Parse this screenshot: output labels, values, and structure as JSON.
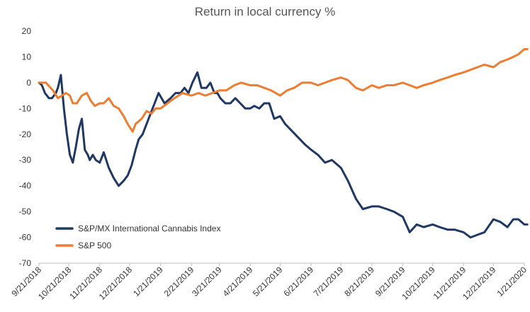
{
  "chart_data": {
    "type": "line",
    "title": "Return in local currency %",
    "xlabel": "",
    "ylabel": "",
    "ylim": [
      -70,
      20
    ],
    "y_ticks": [
      20,
      10,
      0,
      -10,
      -20,
      -30,
      -40,
      -50,
      -60,
      -70
    ],
    "x_tick_labels": [
      "9/21/2018",
      "10/21/2018",
      "11/21/2018",
      "12/21/2018",
      "1/21/2019",
      "2/21/2019",
      "3/21/2019",
      "4/21/2019",
      "5/21/2019",
      "6/21/2019",
      "7/21/2019",
      "8/21/2019",
      "9/21/2019",
      "10/21/2019",
      "11/21/2019",
      "12/21/2019",
      "1/21/2020"
    ],
    "x_axis": "monthly dates, 9/21/2018 to 1/21/2020",
    "grid": false,
    "legend_position": "lower-left",
    "series": [
      {
        "name": "S&P/MX International Cannabis Index",
        "color": "#1f3864",
        "x": [
          "9/21/2018",
          "9/24/2018",
          "9/27/2018",
          "10/1/2018",
          "10/4/2018",
          "10/8/2018",
          "10/10/2018",
          "10/13/2018",
          "10/16/2018",
          "10/19/2018",
          "10/22/2018",
          "10/25/2018",
          "10/28/2018",
          "10/31/2018",
          "11/3/2018",
          "11/6/2018",
          "11/9/2018",
          "11/11/2018",
          "11/14/2018",
          "11/17/2018",
          "11/21/2018",
          "11/25/2018",
          "11/30/2018",
          "12/5/2018",
          "12/10/2018",
          "12/15/2018",
          "12/19/2018",
          "12/23/2018",
          "12/27/2018",
          "12/30/2018",
          "1/3/2019",
          "1/7/2019",
          "1/11/2019",
          "1/15/2019",
          "1/19/2019",
          "1/25/2019",
          "1/31/2019",
          "2/5/2019",
          "2/10/2019",
          "2/14/2019",
          "2/18/2019",
          "2/22/2019",
          "2/27/2019",
          "3/3/2019",
          "3/8/2019",
          "3/12/2019",
          "3/16/2019",
          "3/19/2019",
          "3/22/2019",
          "3/27/2019",
          "4/1/2019",
          "4/6/2019",
          "4/11/2019",
          "4/16/2019",
          "4/21/2019",
          "4/25/2019",
          "4/30/2019",
          "5/5/2019",
          "5/10/2019",
          "5/15/2019",
          "5/21/2019",
          "5/26/2019",
          "5/31/2019",
          "6/5/2019",
          "6/10/2019",
          "6/15/2019",
          "6/21/2019",
          "6/28/2019",
          "7/5/2019",
          "7/12/2019",
          "7/21/2019",
          "7/28/2019",
          "8/5/2019",
          "8/12/2019",
          "8/21/2019",
          "8/28/2019",
          "9/5/2019",
          "9/12/2019",
          "9/21/2019",
          "9/28/2019",
          "10/5/2019",
          "10/12/2019",
          "10/21/2019",
          "10/28/2019",
          "11/5/2019",
          "11/12/2019",
          "11/21/2019",
          "11/28/2019",
          "12/5/2019",
          "12/12/2019",
          "12/21/2019",
          "12/28/2019",
          "1/4/2020",
          "1/10/2020",
          "1/15/2020",
          "1/21/2020",
          "1/24/2020"
        ],
        "y": [
          0,
          -1,
          -4,
          -6,
          -6,
          -4,
          -2,
          3,
          -10,
          -20,
          -28,
          -31,
          -25,
          -18,
          -14,
          -26,
          -28,
          -30,
          -28,
          -30,
          -31,
          -27,
          -33,
          -37,
          -40,
          -38,
          -36,
          -32,
          -26,
          -22,
          -20,
          -16,
          -12,
          -8,
          -4,
          -8,
          -6,
          -4,
          -4,
          -2,
          -4,
          0,
          4,
          -2,
          -2,
          0,
          -4,
          -4,
          -6,
          -8,
          -8,
          -6,
          -8,
          -10,
          -10,
          -9,
          -10,
          -8,
          -8,
          -14,
          -13,
          -16,
          -18,
          -20,
          -22,
          -24,
          -26,
          -28,
          -31,
          -30,
          -33,
          -38,
          -45,
          -49,
          -48,
          -48,
          -49,
          -50,
          -52,
          -58,
          -55,
          -56,
          -55,
          -56,
          -57,
          -57,
          -58,
          -60,
          -59,
          -58,
          -53,
          -54,
          -56,
          -53,
          -53,
          -55,
          -55
        ]
      },
      {
        "name": "S&P 500",
        "color": "#ed7d31",
        "x": [
          "9/21/2018",
          "9/28/2018",
          "10/5/2018",
          "10/10/2018",
          "10/14/2018",
          "10/18/2018",
          "10/22/2018",
          "10/25/2018",
          "10/29/2018",
          "11/3/2018",
          "11/8/2018",
          "11/12/2018",
          "11/16/2018",
          "11/21/2018",
          "11/25/2018",
          "11/30/2018",
          "12/5/2018",
          "12/10/2018",
          "12/15/2018",
          "12/19/2018",
          "12/24/2018",
          "12/27/2018",
          "1/2/2019",
          "1/7/2019",
          "1/12/2019",
          "1/16/2019",
          "1/21/2019",
          "1/28/2019",
          "2/4/2019",
          "2/12/2019",
          "2/21/2019",
          "2/28/2019",
          "3/7/2019",
          "3/14/2019",
          "3/21/2019",
          "3/28/2019",
          "4/5/2019",
          "4/12/2019",
          "4/21/2019",
          "4/28/2019",
          "5/5/2019",
          "5/12/2019",
          "5/21/2019",
          "5/28/2019",
          "6/4/2019",
          "6/12/2019",
          "6/21/2019",
          "6/28/2019",
          "7/5/2019",
          "7/12/2019",
          "7/21/2019",
          "7/28/2019",
          "8/5/2019",
          "8/12/2019",
          "8/21/2019",
          "8/28/2019",
          "9/5/2019",
          "9/12/2019",
          "9/21/2019",
          "9/28/2019",
          "10/5/2019",
          "10/12/2019",
          "10/21/2019",
          "10/28/2019",
          "11/5/2019",
          "11/12/2019",
          "11/21/2019",
          "11/28/2019",
          "12/5/2019",
          "12/12/2019",
          "12/21/2019",
          "12/28/2019",
          "1/4/2020",
          "1/10/2020",
          "1/15/2020",
          "1/21/2020",
          "1/24/2020"
        ],
        "y": [
          0,
          0,
          -3,
          -6,
          -5,
          -4,
          -5,
          -8,
          -8,
          -5,
          -4,
          -7,
          -9,
          -8,
          -8,
          -6,
          -9,
          -10,
          -13,
          -16,
          -19,
          -16,
          -14,
          -11,
          -12,
          -10,
          -10,
          -8,
          -6,
          -4,
          -5,
          -4,
          -5,
          -4,
          -3,
          -3,
          -1,
          0,
          -1,
          -1,
          -2,
          -3,
          -5,
          -3,
          -2,
          0,
          0,
          -1,
          0,
          1,
          2,
          1,
          -2,
          -3,
          -1,
          -2,
          -1,
          -1,
          0,
          -1,
          -2,
          -1,
          0,
          1,
          2,
          3,
          4,
          5,
          6,
          7,
          6,
          8,
          9,
          10,
          11,
          13,
          13
        ]
      }
    ]
  },
  "legend": {
    "items": [
      {
        "label": "S&P/MX International Cannabis Index",
        "color": "#1f3864"
      },
      {
        "label": "S&P 500",
        "color": "#ed7d31"
      }
    ]
  }
}
